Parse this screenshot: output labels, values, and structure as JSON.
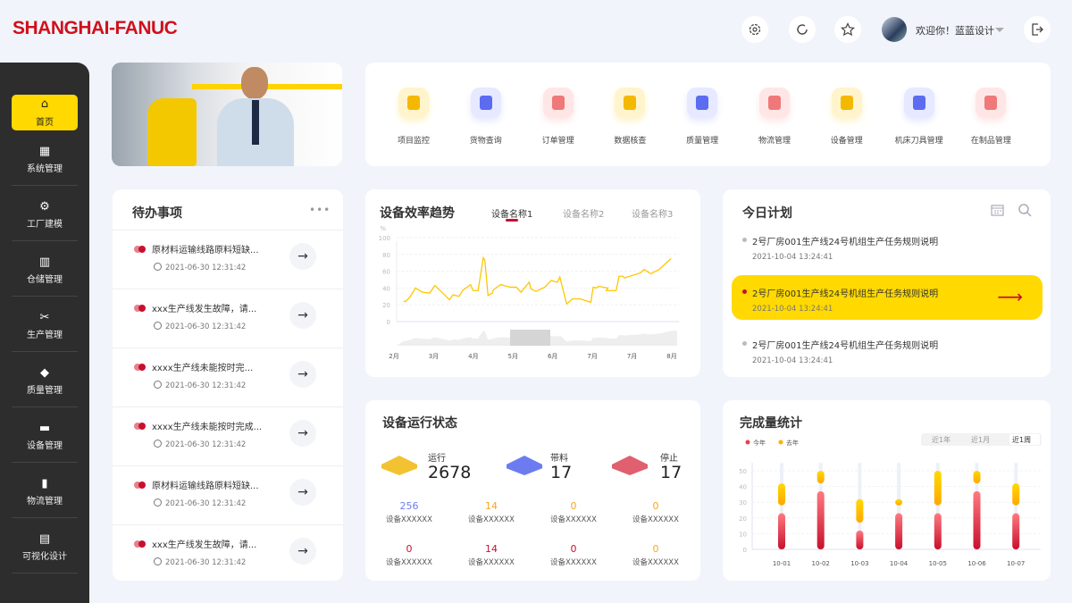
{
  "header": {
    "logo": "SHANGHAI-FANUC",
    "welcome": "欢迎你！蓝蓝设计",
    "icons": [
      "gear-icon",
      "refresh-icon",
      "star-icon",
      "logout-icon"
    ]
  },
  "sidebar": {
    "items": [
      {
        "label": "首页",
        "icon": "home-icon",
        "active": true
      },
      {
        "label": "系统管理",
        "icon": "grid-icon"
      },
      {
        "label": "工厂建模",
        "icon": "robot-arm-icon"
      },
      {
        "label": "仓储管理",
        "icon": "warehouse-icon"
      },
      {
        "label": "生产管理",
        "icon": "tools-icon"
      },
      {
        "label": "质量管理",
        "icon": "diamond-icon"
      },
      {
        "label": "设备管理",
        "icon": "truck-icon"
      },
      {
        "label": "物流管理",
        "icon": "books-icon"
      },
      {
        "label": "可视化设计",
        "icon": "chart-icon"
      }
    ]
  },
  "quick": [
    {
      "label": "项目监控",
      "icon": "camera-icon",
      "color": "#f5b800",
      "bg": "#fff4cc"
    },
    {
      "label": "货物查询",
      "icon": "box-search-icon",
      "color": "#5b6cf0",
      "bg": "#e6e9ff"
    },
    {
      "label": "订单管理",
      "icon": "clipboard-icon",
      "color": "#f07878",
      "bg": "#ffe6e6"
    },
    {
      "label": "数据核查",
      "icon": "monitor-icon",
      "color": "#f5b800",
      "bg": "#fff4cc"
    },
    {
      "label": "质量管理",
      "icon": "shield-check-icon",
      "color": "#5b6cf0",
      "bg": "#e6e9ff"
    },
    {
      "label": "物流管理",
      "icon": "gear-icon",
      "color": "#f07878",
      "bg": "#ffe6e6"
    },
    {
      "label": "设备管理",
      "icon": "device-icon",
      "color": "#f5b800",
      "bg": "#fff4cc"
    },
    {
      "label": "机床刀具管理",
      "icon": "drill-icon",
      "color": "#5b6cf0",
      "bg": "#e6e9ff"
    },
    {
      "label": "在制品管理",
      "icon": "cube-icon",
      "color": "#f07878",
      "bg": "#ffe6e6"
    }
  ],
  "todo": {
    "title": "待办事项",
    "items": [
      {
        "text": "原材料运输线路原料短缺...",
        "time": "2021-06-30  12:31:42"
      },
      {
        "text": "xxx生产线发生故障，请...",
        "time": "2021-06-30  12:31:42"
      },
      {
        "text": "xxxx生产线未能按时完...",
        "time": "2021-06-30  12:31:42"
      },
      {
        "text": "xxxx生产线未能按时完成...",
        "time": "2021-06-30  12:31:42"
      },
      {
        "text": "原材料运输线路原料短缺...",
        "time": "2021-06-30  12:31:42"
      },
      {
        "text": "xxx生产线发生故障，请...",
        "time": "2021-06-30  12:31:42"
      }
    ]
  },
  "efficiency": {
    "title": "设备效率趋势",
    "tabs": [
      "设备名称1",
      "设备名称2",
      "设备名称3"
    ],
    "active_tab": 0,
    "accent": "#c8102e"
  },
  "plan": {
    "title": "今日计划",
    "items": [
      {
        "text": "2号厂房001生产线24号机组生产任务规则说明",
        "time": "2021-10-04  13:24:41"
      },
      {
        "text": "2号厂房001生产线24号机组生产任务规则说明",
        "time": "2021-10-04  13:24:41",
        "highlight": true
      },
      {
        "text": "2号厂房001生产线24号机组生产任务规则说明",
        "time": "2021-10-04  13:24:41"
      }
    ],
    "highlight_color": "#ffd900"
  },
  "status": {
    "title": "设备运行状态",
    "summary": [
      {
        "label": "运行",
        "value": "2678",
        "color": "#f2c230"
      },
      {
        "label": "带料",
        "value": "17",
        "color": "#6c7cf0"
      },
      {
        "label": "停止",
        "value": "17",
        "color": "#e06070"
      }
    ],
    "rows": [
      [
        {
          "v": "256",
          "c": "#6c7cf0",
          "l": "设备XXXXXX"
        },
        {
          "v": "14",
          "c": "#f5a623",
          "l": "设备XXXXXX"
        },
        {
          "v": "0",
          "c": "#f5a623",
          "l": "设备XXXXXX"
        },
        {
          "v": "0",
          "c": "#f5a623",
          "l": "设备XXXXXX"
        }
      ],
      [
        {
          "v": "0",
          "c": "#c8102e",
          "l": "设备XXXXXX"
        },
        {
          "v": "14",
          "c": "#c8102e",
          "l": "设备XXXXXX"
        },
        {
          "v": "0",
          "c": "#c8102e",
          "l": "设备XXXXXX"
        },
        {
          "v": "0",
          "c": "#f5a623",
          "l": "设备XXXXXX"
        }
      ]
    ]
  },
  "completion": {
    "title": "完成量统计",
    "ranges": [
      "近1年",
      "近1月",
      "近1周"
    ],
    "active_range": 2
  },
  "chart_data": [
    {
      "type": "line",
      "ylabel": "%",
      "ylim": [
        0,
        100
      ],
      "yticks": [
        0,
        20,
        40,
        60,
        80,
        100
      ],
      "xticks": [
        "2月",
        "3月",
        "4月",
        "5月",
        "6月",
        "7月",
        "7月",
        "8月"
      ],
      "grid": true,
      "color": "#ffc600",
      "points": [
        [
          0.24,
          24
        ],
        [
          0.29,
          24
        ],
        [
          0.4,
          29
        ],
        [
          0.54,
          40
        ],
        [
          0.72,
          35
        ],
        [
          0.9,
          34
        ],
        [
          1.03,
          43
        ],
        [
          1.4,
          26
        ],
        [
          1.49,
          32
        ],
        [
          1.64,
          30
        ],
        [
          1.73,
          37
        ],
        [
          1.93,
          44
        ],
        [
          1.99,
          37
        ],
        [
          2.12,
          37
        ],
        [
          2.25,
          76
        ],
        [
          2.29,
          73
        ],
        [
          2.37,
          31
        ],
        [
          2.48,
          34
        ],
        [
          2.51,
          38
        ],
        [
          2.69,
          44
        ],
        [
          2.93,
          41
        ],
        [
          3.08,
          41
        ],
        [
          3.2,
          35
        ],
        [
          3.41,
          47
        ],
        [
          3.45,
          39
        ],
        [
          3.58,
          36
        ],
        [
          3.8,
          41
        ],
        [
          3.96,
          49
        ],
        [
          4.12,
          47
        ],
        [
          4.18,
          53
        ],
        [
          4.35,
          21
        ],
        [
          4.5,
          27
        ],
        [
          4.7,
          27
        ],
        [
          4.96,
          23
        ],
        [
          5.02,
          41
        ],
        [
          5.09,
          40
        ],
        [
          5.17,
          42
        ],
        [
          5.27,
          41
        ],
        [
          5.39,
          40
        ],
        [
          5.35,
          37
        ],
        [
          5.6,
          37
        ],
        [
          5.67,
          54
        ],
        [
          5.77,
          54
        ],
        [
          5.81,
          52
        ],
        [
          6.21,
          58
        ],
        [
          6.3,
          62
        ],
        [
          6.47,
          57
        ],
        [
          6.68,
          62
        ],
        [
          6.98,
          75
        ]
      ]
    },
    {
      "type": "bar",
      "categories": [
        "10-01",
        "10-02",
        "10-03",
        "10-04",
        "10-05",
        "10-06",
        "10-07"
      ],
      "ylim": [
        0,
        55
      ],
      "yticks": [
        0,
        10,
        20,
        30,
        40,
        50
      ],
      "legend": "top-left",
      "series": [
        {
          "name": "今年",
          "color": "#c8102e",
          "values": [
            23,
            37,
            12,
            23,
            23,
            37,
            23
          ]
        },
        {
          "name": "去年",
          "color": "#ffc600",
          "ranges": [
            [
              28,
              42
            ],
            [
              42,
              50
            ],
            [
              17,
              32
            ],
            [
              28,
              32
            ],
            [
              28,
              50
            ],
            [
              42,
              50
            ],
            [
              28,
              42
            ]
          ]
        }
      ]
    }
  ]
}
